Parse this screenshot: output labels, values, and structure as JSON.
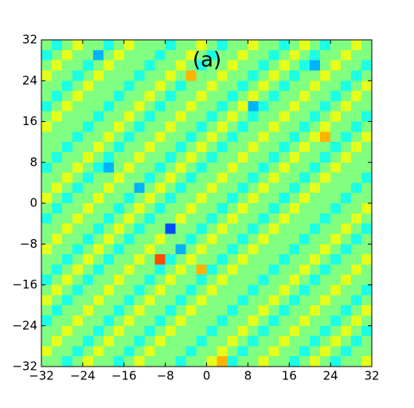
{
  "chart_data": {
    "type": "heatmap",
    "title": "(a)",
    "colormap": "jet",
    "clim": [
      0,
      10
    ],
    "xlim": [
      -32,
      32
    ],
    "ylim": [
      -32,
      32
    ],
    "xticks": [
      {
        "value": -32,
        "label": "−32"
      },
      {
        "value": -24,
        "label": "−24"
      },
      {
        "value": -16,
        "label": "−16"
      },
      {
        "value": -8,
        "label": "−8"
      },
      0,
      8,
      16,
      24,
      32
    ],
    "yticks": [
      {
        "value": -32,
        "label": "−32"
      },
      {
        "value": -24,
        "label": "−24"
      },
      {
        "value": -16,
        "label": "−16"
      },
      {
        "value": -8,
        "label": "−8"
      },
      0,
      8,
      16,
      24,
      32
    ],
    "values": [
      [
        5,
        4,
        5,
        6,
        5,
        5,
        4,
        5,
        6,
        5,
        5,
        5,
        4,
        5,
        5,
        6,
        5,
        4,
        5,
        5,
        6,
        5,
        5,
        4,
        5,
        6,
        5,
        4,
        5,
        5,
        6,
        5
      ],
      [
        4,
        5,
        6,
        5,
        5,
        3,
        5,
        6,
        5,
        5,
        5,
        4,
        5,
        5,
        6,
        5,
        4,
        5,
        5,
        6,
        5,
        5,
        4,
        5,
        6,
        5,
        4,
        5,
        5,
        6,
        5,
        5
      ],
      [
        5,
        6,
        5,
        5,
        4,
        5,
        6,
        5,
        5,
        5,
        4,
        5,
        5,
        6,
        5,
        4,
        5,
        5,
        6,
        5,
        5,
        4,
        5,
        6,
        5,
        4,
        3,
        5,
        6,
        5,
        5,
        4
      ],
      [
        6,
        5,
        5,
        4,
        5,
        6,
        5,
        5,
        5,
        4,
        5,
        5,
        6,
        5,
        7,
        5,
        5,
        6,
        5,
        5,
        4,
        5,
        6,
        5,
        4,
        5,
        5,
        6,
        5,
        5,
        4,
        5
      ],
      [
        5,
        5,
        4,
        5,
        6,
        5,
        5,
        5,
        4,
        5,
        5,
        6,
        5,
        4,
        5,
        5,
        6,
        5,
        5,
        4,
        5,
        6,
        5,
        4,
        5,
        5,
        6,
        5,
        5,
        4,
        5,
        6
      ],
      [
        5,
        4,
        5,
        6,
        5,
        5,
        5,
        4,
        5,
        5,
        6,
        5,
        4,
        5,
        5,
        6,
        5,
        5,
        4,
        5,
        6,
        5,
        4,
        5,
        5,
        6,
        5,
        5,
        4,
        5,
        6,
        5
      ],
      [
        4,
        5,
        6,
        5,
        5,
        5,
        4,
        5,
        5,
        6,
        5,
        4,
        5,
        5,
        6,
        5,
        5,
        4,
        5,
        6,
        3,
        4,
        5,
        5,
        6,
        5,
        5,
        4,
        5,
        6,
        5,
        5
      ],
      [
        5,
        6,
        5,
        5,
        5,
        4,
        5,
        5,
        6,
        5,
        4,
        5,
        5,
        6,
        5,
        5,
        4,
        5,
        6,
        5,
        4,
        5,
        5,
        6,
        5,
        5,
        4,
        5,
        6,
        5,
        5,
        4
      ],
      [
        6,
        5,
        5,
        5,
        4,
        5,
        5,
        6,
        5,
        4,
        5,
        5,
        6,
        5,
        5,
        4,
        5,
        6,
        5,
        4,
        5,
        5,
        6,
        5,
        5,
        4,
        5,
        6,
        5,
        5,
        4,
        5
      ],
      [
        5,
        5,
        5,
        4,
        5,
        5,
        6,
        5,
        4,
        5,
        5,
        6,
        5,
        5,
        4,
        5,
        6,
        5,
        4,
        5,
        5,
        6,
        5,
        5,
        4,
        5,
        6,
        7,
        5,
        4,
        5,
        6
      ],
      [
        5,
        5,
        4,
        5,
        5,
        6,
        5,
        4,
        5,
        5,
        6,
        5,
        5,
        4,
        5,
        6,
        5,
        4,
        5,
        5,
        6,
        5,
        5,
        4,
        5,
        6,
        5,
        5,
        4,
        5,
        6,
        5
      ],
      [
        5,
        4,
        5,
        5,
        6,
        5,
        4,
        5,
        5,
        6,
        5,
        5,
        4,
        5,
        6,
        5,
        4,
        5,
        5,
        6,
        5,
        5,
        4,
        5,
        6,
        5,
        5,
        4,
        5,
        6,
        5,
        5
      ],
      [
        4,
        5,
        5,
        6,
        5,
        4,
        3,
        5,
        6,
        5,
        5,
        4,
        5,
        6,
        5,
        4,
        5,
        5,
        6,
        5,
        5,
        4,
        5,
        6,
        5,
        5,
        4,
        5,
        6,
        5,
        5,
        5
      ],
      [
        5,
        5,
        6,
        5,
        4,
        5,
        5,
        6,
        5,
        5,
        4,
        5,
        6,
        5,
        4,
        5,
        5,
        6,
        5,
        5,
        4,
        5,
        6,
        5,
        5,
        4,
        5,
        6,
        5,
        5,
        5,
        4
      ],
      [
        5,
        6,
        5,
        4,
        5,
        5,
        6,
        5,
        5,
        3,
        5,
        6,
        5,
        4,
        5,
        5,
        6,
        5,
        5,
        4,
        5,
        6,
        5,
        5,
        4,
        5,
        6,
        5,
        5,
        5,
        4,
        5
      ],
      [
        6,
        5,
        4,
        5,
        5,
        6,
        5,
        5,
        4,
        5,
        6,
        5,
        4,
        5,
        5,
        6,
        5,
        5,
        4,
        5,
        6,
        5,
        5,
        4,
        5,
        6,
        5,
        5,
        5,
        4,
        5,
        5
      ],
      [
        5,
        4,
        5,
        5,
        6,
        5,
        5,
        4,
        5,
        6,
        5,
        4,
        5,
        5,
        6,
        5,
        5,
        4,
        5,
        6,
        5,
        5,
        4,
        5,
        6,
        5,
        5,
        5,
        4,
        5,
        5,
        6
      ],
      [
        4,
        5,
        5,
        6,
        5,
        5,
        4,
        5,
        6,
        5,
        4,
        5,
        5,
        6,
        5,
        5,
        4,
        5,
        6,
        5,
        5,
        4,
        5,
        6,
        5,
        5,
        5,
        4,
        5,
        5,
        6,
        5
      ],
      [
        5,
        5,
        6,
        5,
        5,
        4,
        5,
        6,
        5,
        4,
        5,
        5,
        2,
        5,
        5,
        4,
        5,
        6,
        5,
        5,
        4,
        5,
        6,
        5,
        5,
        5,
        4,
        5,
        5,
        6,
        5,
        4
      ],
      [
        5,
        6,
        5,
        5,
        4,
        5,
        6,
        5,
        4,
        5,
        5,
        6,
        5,
        5,
        4,
        5,
        6,
        5,
        5,
        4,
        5,
        6,
        5,
        5,
        5,
        4,
        5,
        5,
        6,
        5,
        4,
        5
      ],
      [
        6,
        5,
        5,
        4,
        5,
        6,
        5,
        4,
        5,
        5,
        6,
        5,
        5,
        3,
        5,
        6,
        5,
        5,
        4,
        5,
        6,
        5,
        5,
        5,
        4,
        5,
        5,
        6,
        5,
        4,
        5,
        5
      ],
      [
        5,
        5,
        4,
        5,
        6,
        5,
        4,
        5,
        5,
        6,
        5,
        8,
        4,
        5,
        6,
        5,
        5,
        4,
        5,
        6,
        5,
        5,
        5,
        4,
        5,
        5,
        6,
        5,
        4,
        5,
        5,
        6
      ],
      [
        5,
        4,
        5,
        6,
        5,
        4,
        5,
        5,
        6,
        5,
        5,
        4,
        5,
        6,
        5,
        7,
        4,
        5,
        6,
        5,
        5,
        5,
        4,
        5,
        5,
        6,
        5,
        4,
        5,
        5,
        6,
        5
      ],
      [
        4,
        5,
        6,
        5,
        4,
        5,
        5,
        6,
        5,
        5,
        4,
        5,
        6,
        5,
        5,
        4,
        5,
        6,
        5,
        5,
        5,
        4,
        5,
        5,
        6,
        5,
        4,
        5,
        5,
        6,
        5,
        5
      ],
      [
        5,
        6,
        5,
        4,
        5,
        5,
        6,
        5,
        5,
        4,
        5,
        6,
        5,
        5,
        4,
        5,
        6,
        5,
        5,
        5,
        4,
        5,
        5,
        6,
        5,
        4,
        5,
        5,
        6,
        5,
        5,
        4
      ],
      [
        6,
        5,
        4,
        5,
        5,
        6,
        5,
        5,
        4,
        5,
        6,
        5,
        5,
        4,
        5,
        6,
        5,
        5,
        5,
        4,
        5,
        5,
        6,
        5,
        4,
        5,
        5,
        6,
        5,
        5,
        4,
        5
      ],
      [
        5,
        4,
        5,
        5,
        6,
        5,
        5,
        4,
        5,
        6,
        5,
        5,
        4,
        5,
        6,
        5,
        5,
        5,
        4,
        5,
        5,
        6,
        5,
        4,
        5,
        5,
        6,
        5,
        5,
        4,
        5,
        6
      ],
      [
        4,
        5,
        5,
        6,
        5,
        5,
        4,
        5,
        6,
        5,
        5,
        4,
        5,
        6,
        5,
        5,
        5,
        4,
        5,
        5,
        6,
        5,
        4,
        5,
        5,
        6,
        5,
        5,
        4,
        5,
        6,
        5
      ],
      [
        5,
        5,
        6,
        5,
        5,
        4,
        5,
        6,
        5,
        5,
        4,
        5,
        6,
        5,
        5,
        5,
        4,
        5,
        5,
        6,
        5,
        4,
        5,
        5,
        6,
        5,
        5,
        4,
        5,
        6,
        5,
        4
      ],
      [
        5,
        6,
        5,
        5,
        4,
        5,
        6,
        5,
        5,
        4,
        5,
        6,
        5,
        5,
        5,
        4,
        5,
        5,
        6,
        5,
        4,
        5,
        5,
        6,
        5,
        5,
        4,
        5,
        6,
        5,
        4,
        5
      ],
      [
        6,
        5,
        5,
        4,
        5,
        6,
        5,
        5,
        4,
        5,
        6,
        5,
        5,
        5,
        4,
        5,
        5,
        6,
        5,
        4,
        5,
        5,
        6,
        5,
        5,
        4,
        5,
        6,
        5,
        4,
        5,
        5
      ],
      [
        5,
        5,
        4,
        5,
        6,
        5,
        5,
        4,
        5,
        6,
        5,
        5,
        5,
        4,
        5,
        5,
        6,
        7,
        4,
        5,
        5,
        6,
        5,
        5,
        4,
        5,
        6,
        5,
        4,
        5,
        5,
        6
      ]
    ]
  }
}
